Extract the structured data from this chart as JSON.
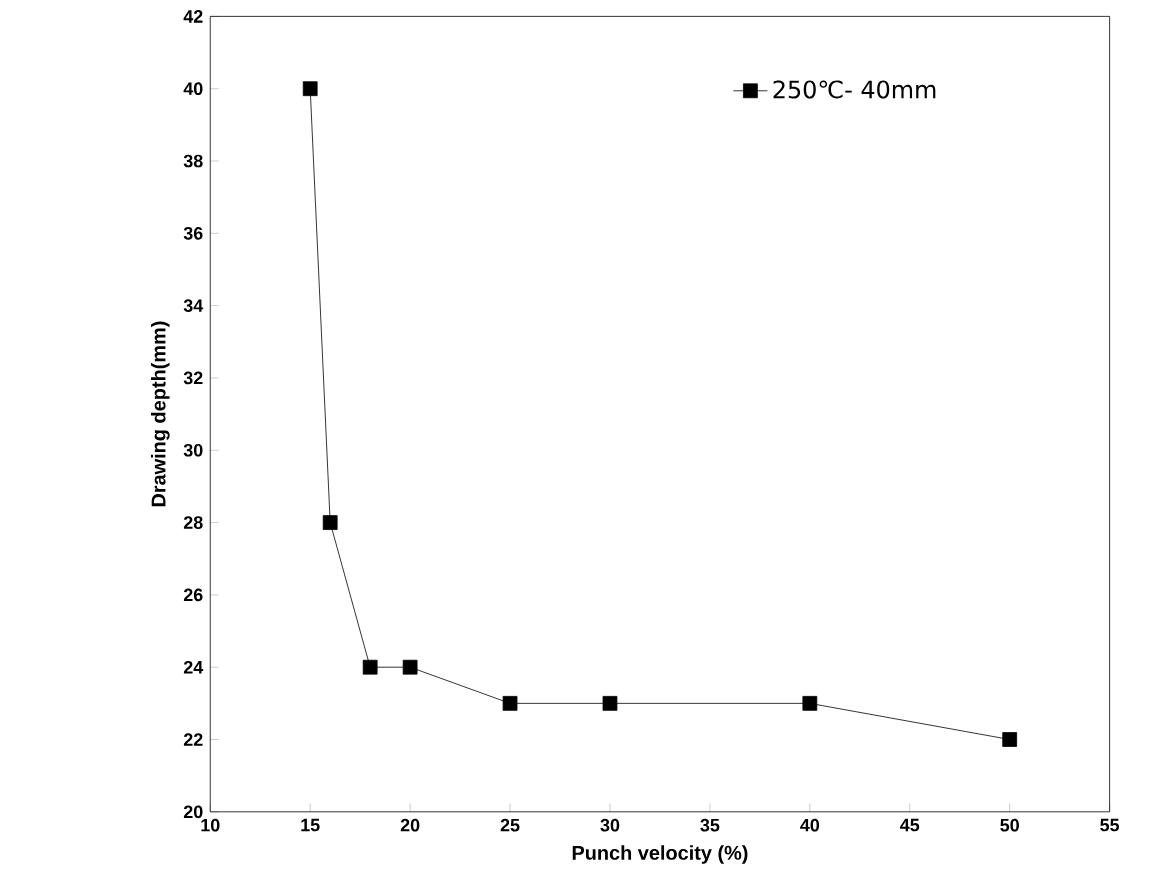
{
  "chart_data": {
    "type": "line",
    "xlabel": "Punch velocity (%)",
    "ylabel": "Drawing depth(mm)",
    "x": [
      15,
      16,
      18,
      20,
      25,
      30,
      40,
      50
    ],
    "series": [
      {
        "name": "250℃- 40mm",
        "color": "#000000",
        "values": [
          40,
          28,
          24,
          24,
          23,
          23,
          23,
          22
        ]
      }
    ],
    "xlim": [
      10,
      55
    ],
    "xticks": [
      10,
      15,
      20,
      25,
      30,
      35,
      40,
      45,
      50,
      55
    ],
    "ylim": [
      20,
      42
    ],
    "yticks": [
      20,
      22,
      24,
      26,
      28,
      30,
      32,
      34,
      36,
      38,
      40,
      42
    ],
    "grid": false,
    "legend": "top right",
    "marker": "square",
    "line_style": "solid"
  }
}
